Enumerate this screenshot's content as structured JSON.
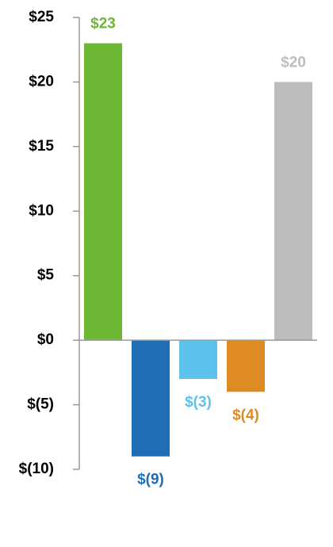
{
  "chart_data": {
    "type": "bar",
    "categories": [
      null,
      null,
      null,
      null,
      null
    ],
    "values": [
      23,
      -9,
      -3,
      -4,
      20
    ],
    "value_labels": [
      "$23",
      "$(9)",
      "$(3)",
      "$(4)",
      "$20"
    ],
    "colors": [
      "#6cb733",
      "#1f6db4",
      "#5ec2ef",
      "#de8b26",
      "#bdbdbd"
    ],
    "ylim": [
      -10,
      25
    ],
    "yticks": [
      {
        "value": -10,
        "label": "$(10)"
      },
      {
        "value": -5,
        "label": "$(5)"
      },
      {
        "value": 0,
        "label": "$0"
      },
      {
        "value": 5,
        "label": "$5"
      },
      {
        "value": 10,
        "label": "$10"
      },
      {
        "value": 15,
        "label": "$15"
      },
      {
        "value": 20,
        "label": "$20"
      },
      {
        "value": 25,
        "label": "$25"
      }
    ]
  }
}
